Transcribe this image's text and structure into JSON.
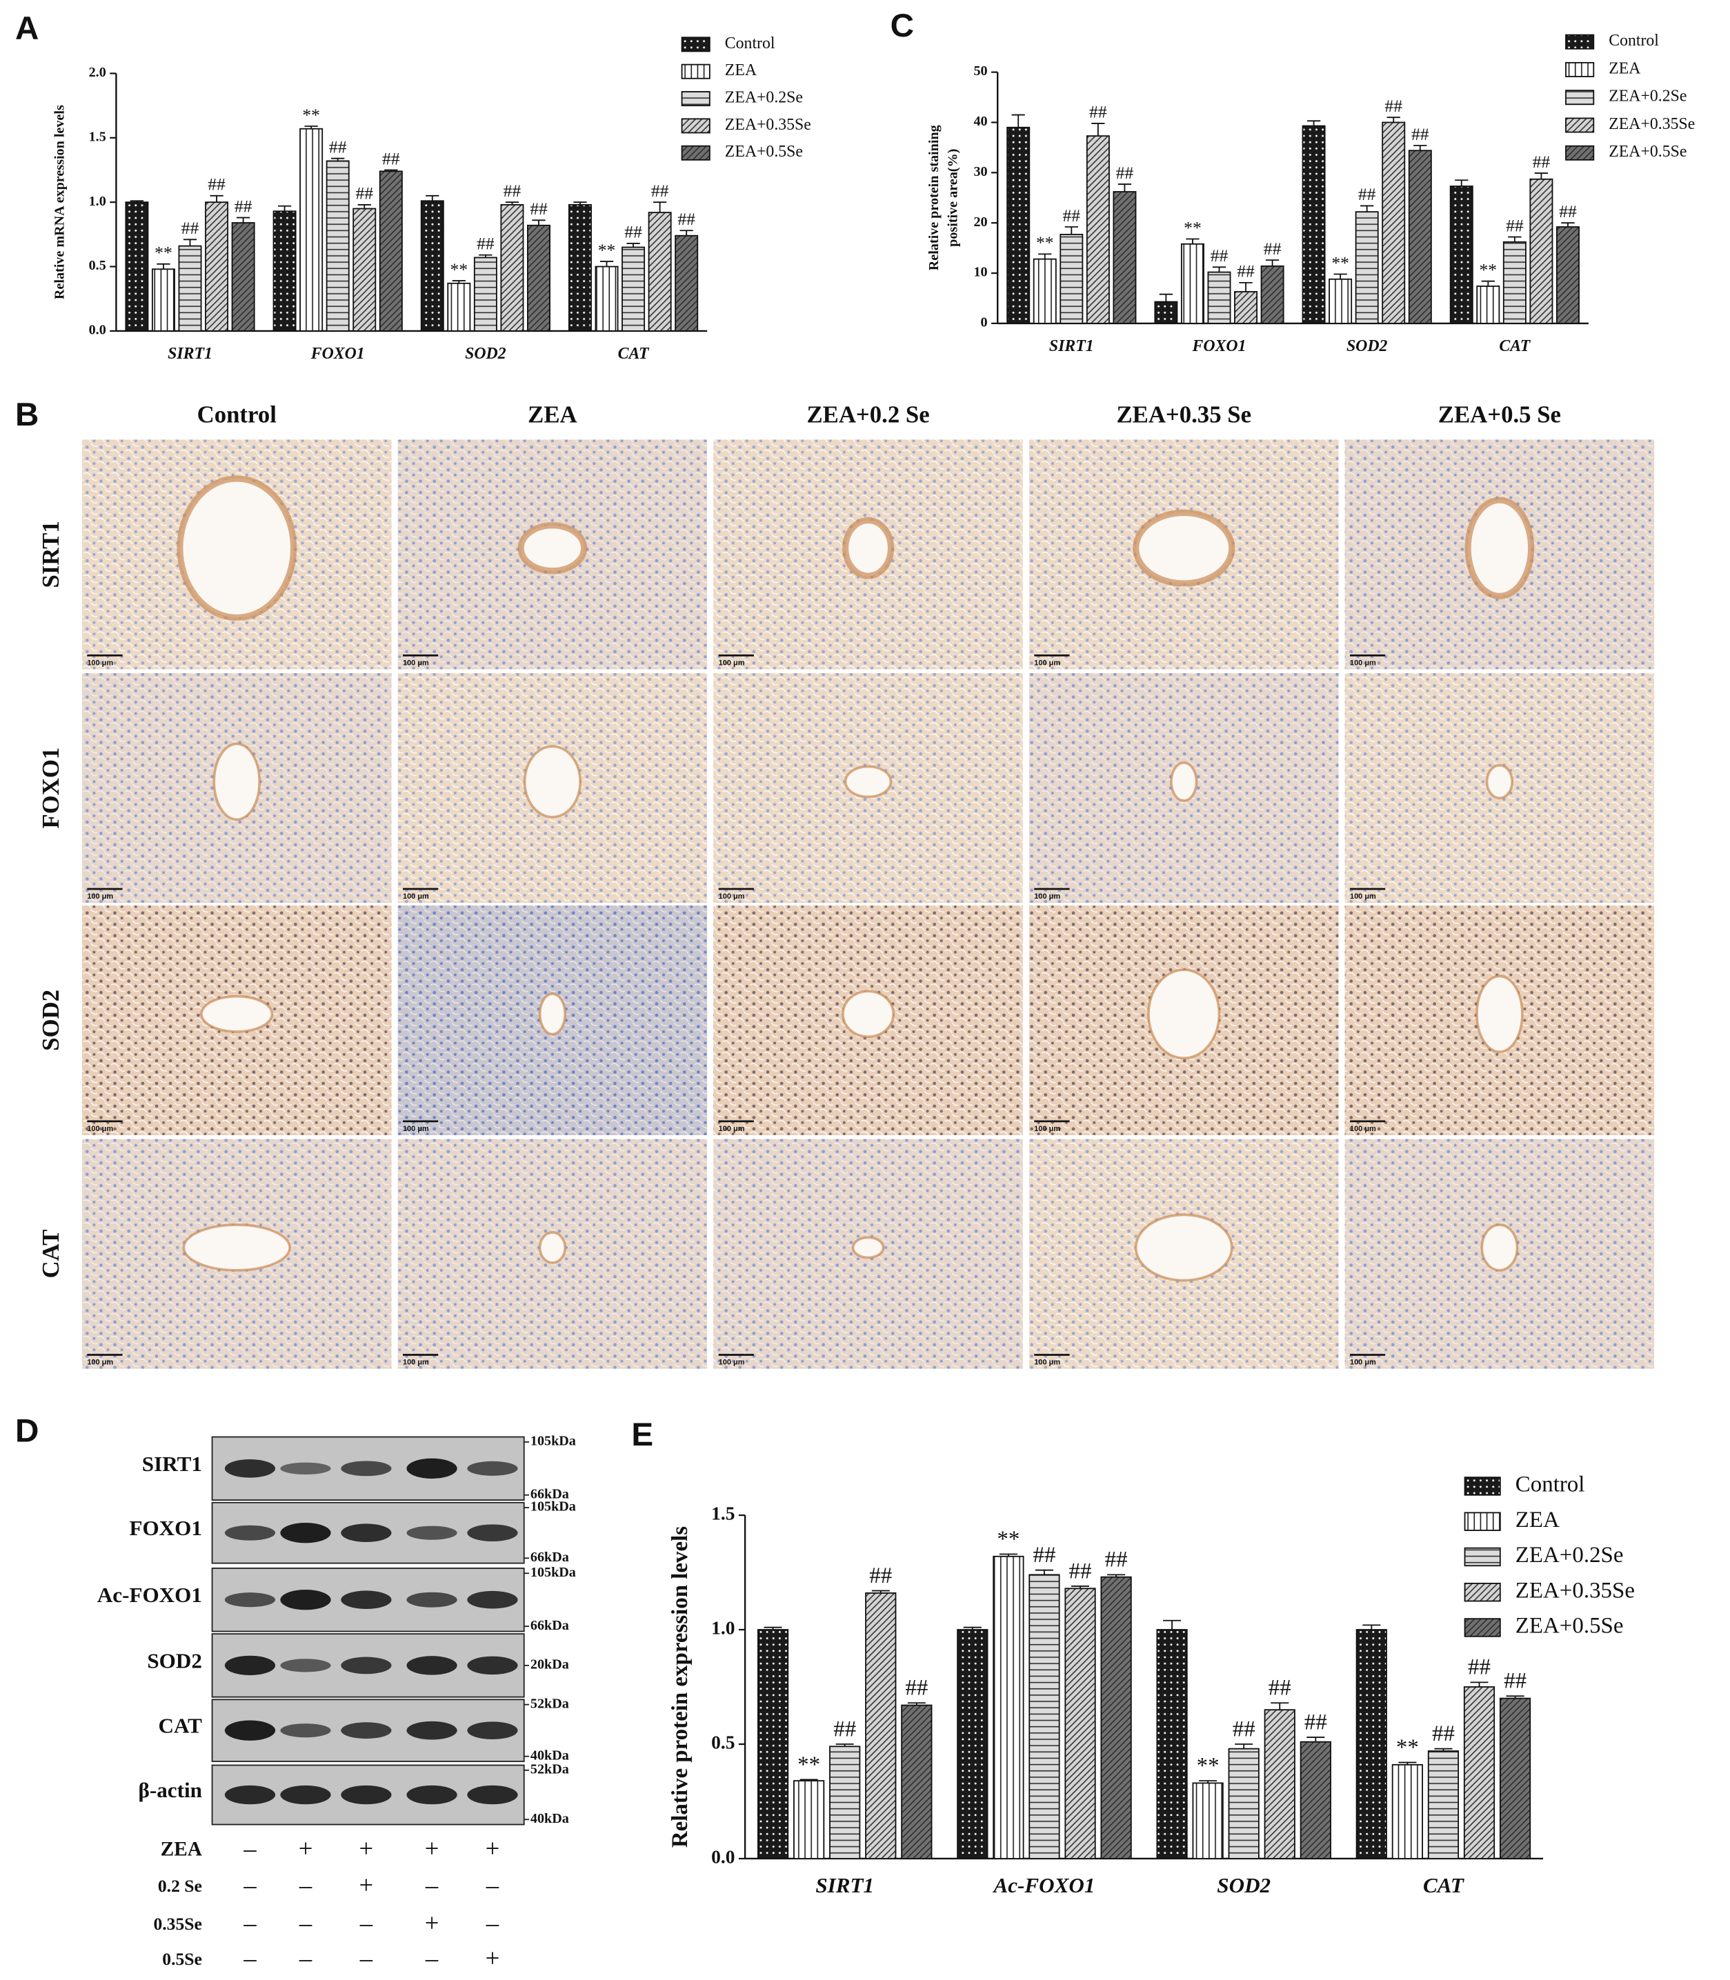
{
  "chart_data": [
    {
      "type": "bar",
      "label": "A",
      "ylabel": [
        "Relative mRNA expression levels"
      ],
      "categories": [
        "SIRT1",
        "FOXO1",
        "SOD2",
        "CAT"
      ],
      "ylim": [
        0,
        2
      ],
      "yticks": [
        {
          "value": 0,
          "label": "0.0"
        },
        0.5,
        {
          "value": 1,
          "label": "1.0"
        },
        1.5,
        {
          "value": 2,
          "label": "2.0"
        }
      ],
      "series": [
        {
          "name": "Control",
          "color": "#1a1a1a",
          "pattern": "dots",
          "values": [
            1.0,
            0.93,
            1.01,
            0.98
          ],
          "errors": [
            0.01,
            0.04,
            0.04,
            0.02
          ],
          "annotations": [
            null,
            null,
            null,
            null
          ]
        },
        {
          "name": "ZEA",
          "color": "#ffffff",
          "pattern": "vertical-lines",
          "values": [
            0.48,
            1.57,
            0.37,
            0.5
          ],
          "errors": [
            0.04,
            0.02,
            0.02,
            0.04
          ],
          "annotations": [
            "**",
            "**",
            "**",
            "**"
          ]
        },
        {
          "name": "ZEA+0.2Se",
          "color": "#dcdcdc",
          "pattern": "horizontal-lines",
          "values": [
            0.66,
            1.32,
            0.57,
            0.65
          ],
          "errors": [
            0.05,
            0.02,
            0.02,
            0.03
          ],
          "annotations": [
            "##",
            "##",
            "##",
            "##"
          ]
        },
        {
          "name": "ZEA+0.35Se",
          "color": "#d4d4d4",
          "pattern": "diagonal-lines",
          "values": [
            1.0,
            0.95,
            0.98,
            0.92
          ],
          "errors": [
            0.05,
            0.03,
            0.02,
            0.08
          ],
          "annotations": [
            "##",
            "##",
            "##",
            "##"
          ]
        },
        {
          "name": "ZEA+0.5Se",
          "color": "#707070",
          "pattern": "diagonal-lines",
          "values": [
            0.84,
            1.24,
            0.82,
            0.74
          ],
          "errors": [
            0.04,
            0.01,
            0.04,
            0.04
          ],
          "annotations": [
            "##",
            "##",
            "##",
            "##"
          ]
        }
      ]
    },
    {
      "type": "bar",
      "label": "C",
      "ylabel": [
        "Relative protein staining",
        "positive area(%)"
      ],
      "categories": [
        "SIRT1",
        "FOXO1",
        "SOD2",
        "CAT"
      ],
      "ylim": [
        0,
        50
      ],
      "yticks": [
        0,
        10,
        20,
        30,
        40,
        50
      ],
      "series": [
        {
          "name": "Control",
          "color": "#1a1a1a",
          "pattern": "dots",
          "values": [
            39.0,
            4.3,
            39.3,
            27.3
          ],
          "errors": [
            2.5,
            1.5,
            1.0,
            1.2
          ],
          "annotations": [
            null,
            null,
            null,
            null
          ]
        },
        {
          "name": "ZEA",
          "color": "#ffffff",
          "pattern": "vertical-lines",
          "values": [
            12.8,
            15.8,
            8.8,
            7.4
          ],
          "errors": [
            1.0,
            1.0,
            1.0,
            1.0
          ],
          "annotations": [
            "**",
            "**",
            "**",
            "**"
          ]
        },
        {
          "name": "ZEA+0.2Se",
          "color": "#dcdcdc",
          "pattern": "horizontal-lines",
          "values": [
            17.7,
            10.2,
            22.2,
            16.2
          ],
          "errors": [
            1.5,
            1.0,
            1.2,
            1.0
          ],
          "annotations": [
            "##",
            "##",
            "##",
            "##"
          ]
        },
        {
          "name": "ZEA+0.35Se",
          "color": "#d4d4d4",
          "pattern": "diagonal-lines",
          "values": [
            37.3,
            6.3,
            40.0,
            28.7
          ],
          "errors": [
            2.5,
            1.8,
            1.0,
            1.2
          ],
          "annotations": [
            "##",
            "##",
            "##",
            "##"
          ]
        },
        {
          "name": "ZEA+0.5Se",
          "color": "#707070",
          "pattern": "diagonal-lines",
          "values": [
            26.2,
            11.4,
            34.4,
            19.2
          ],
          "errors": [
            1.5,
            1.2,
            1.0,
            0.8
          ],
          "annotations": [
            "##",
            "##",
            "##",
            "##"
          ]
        }
      ]
    },
    {
      "type": "bar",
      "label": "E",
      "ylabel": [
        "Relative protein expression levels"
      ],
      "categories": [
        "SIRT1",
        "Ac-FOXO1",
        "SOD2",
        "CAT"
      ],
      "ylim": [
        0,
        1.5
      ],
      "yticks": [
        {
          "value": 0,
          "label": "0.0"
        },
        0.5,
        {
          "value": 1,
          "label": "1.0"
        },
        1.5
      ],
      "series": [
        {
          "name": "Control",
          "color": "#1a1a1a",
          "pattern": "dots",
          "values": [
            1.0,
            1.0,
            1.0,
            1.0
          ],
          "errors": [
            0.01,
            0.01,
            0.04,
            0.02
          ],
          "annotations": [
            null,
            null,
            null,
            null
          ]
        },
        {
          "name": "ZEA",
          "color": "#ffffff",
          "pattern": "vertical-lines",
          "values": [
            0.34,
            1.32,
            0.33,
            0.41
          ],
          "errors": [
            0.005,
            0.01,
            0.01,
            0.01
          ],
          "annotations": [
            "**",
            "**",
            "**",
            "**"
          ]
        },
        {
          "name": "ZEA+0.2Se",
          "color": "#dcdcdc",
          "pattern": "horizontal-lines",
          "values": [
            0.49,
            1.24,
            0.48,
            0.47
          ],
          "errors": [
            0.01,
            0.02,
            0.02,
            0.01
          ],
          "annotations": [
            "##",
            "##",
            "##",
            "##"
          ]
        },
        {
          "name": "ZEA+0.35Se",
          "color": "#d4d4d4",
          "pattern": "diagonal-lines",
          "values": [
            1.16,
            1.18,
            0.65,
            0.75
          ],
          "errors": [
            0.01,
            0.01,
            0.03,
            0.02
          ],
          "annotations": [
            "##",
            "##",
            "##",
            "##"
          ]
        },
        {
          "name": "ZEA+0.5Se",
          "color": "#707070",
          "pattern": "diagonal-lines",
          "values": [
            0.67,
            1.23,
            0.51,
            0.7
          ],
          "errors": [
            0.01,
            0.01,
            0.02,
            0.01
          ],
          "annotations": [
            "##",
            "##",
            "##",
            "##"
          ]
        }
      ]
    }
  ],
  "panel_b": {
    "label": "B",
    "columns": [
      "Control",
      "ZEA",
      "ZEA+0.2 Se",
      "ZEA+0.35 Se",
      "ZEA+0.5 Se"
    ],
    "rows": [
      "SIRT1",
      "FOXO1",
      "SOD2",
      "CAT"
    ],
    "scale_bar": "100 μm"
  },
  "panel_d": {
    "label": "D",
    "blots": [
      {
        "name": "SIRT1",
        "markers": [
          "105kDa",
          "66kDa"
        ]
      },
      {
        "name": "FOXO1",
        "markers": [
          "105kDa",
          "66kDa"
        ]
      },
      {
        "name": "Ac-FOXO1",
        "markers": [
          "105kDa",
          "66kDa"
        ]
      },
      {
        "name": "SOD2",
        "markers": [
          "20kDa"
        ]
      },
      {
        "name": "CAT",
        "markers": [
          "52kDa",
          "40kDa"
        ]
      },
      {
        "name": "β-actin",
        "markers": [
          "52kDa",
          "40kDa"
        ]
      }
    ],
    "treatments": [
      {
        "name": "ZEA",
        "lanes": [
          "–",
          "+",
          "+",
          "+",
          "+"
        ]
      },
      {
        "name": "0.2 Se",
        "lanes": [
          "–",
          "–",
          "+",
          "–",
          "–"
        ]
      },
      {
        "name": "0.35Se",
        "lanes": [
          "–",
          "–",
          "–",
          "+",
          "–"
        ]
      },
      {
        "name": "0.5Se",
        "lanes": [
          "–",
          "–",
          "–",
          "–",
          "+"
        ]
      }
    ]
  }
}
